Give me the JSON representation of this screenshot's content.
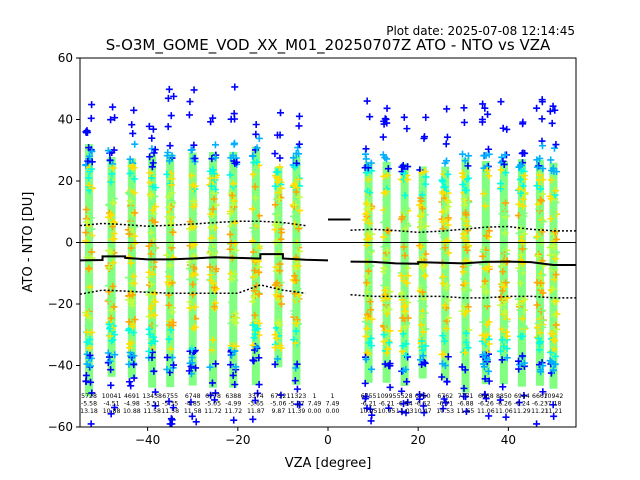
{
  "chart_data": {
    "type": "scatter",
    "title": "S-O3M_GOME_VOD_XX_M01_20250707Z ATO - NTO vs VZA",
    "plot_date": "Plot date: 2025-07-08 12:14:45",
    "xlabel": "VZA [degree]",
    "ylabel": "ATO - NTO [DU]",
    "xlim": [
      -55,
      55
    ],
    "ylim": [
      -60,
      60
    ],
    "xticks": [
      -40,
      -20,
      0,
      20,
      40
    ],
    "yticks": [
      -60,
      -40,
      -20,
      0,
      20,
      40,
      60
    ],
    "grid": false,
    "marker": "+",
    "point_colors": [
      "#0000ff",
      "#00b0ff",
      "#00ffe0",
      "#80ff80",
      "#c0ff40",
      "#ffe000",
      "#ffa500"
    ],
    "bins": [
      {
        "x": -53,
        "count": 5728,
        "mean": -5.58,
        "std": 13.18
      },
      {
        "x": -48,
        "count": 10041,
        "mean": -4.51,
        "std": 10.88
      },
      {
        "x": -43.5,
        "count": 4691,
        "mean": -4.98,
        "std": 10.88
      },
      {
        "x": -39,
        "count": 13438,
        "mean": -5.51,
        "std": 11.58
      },
      {
        "x": -35,
        "count": 6755,
        "mean": -5.35,
        "std": 11.58
      },
      {
        "x": -30,
        "count": 6748,
        "mean": -4.85,
        "std": 11.58
      },
      {
        "x": -25.5,
        "count": 6778,
        "mean": -5.05,
        "std": 11.72
      },
      {
        "x": -21,
        "count": 6388,
        "mean": -4.99,
        "std": 11.72
      },
      {
        "x": -16,
        "count": 3374,
        "mean": -3.65,
        "std": 11.87
      },
      {
        "x": -11,
        "count": 6752,
        "mean": -5.06,
        "std": 9.87
      },
      {
        "x": -7,
        "count": 11323,
        "mean": -5.27,
        "std": 11.39
      },
      {
        "x": -3,
        "count": 1,
        "mean": 7.49,
        "std": 0.0
      },
      {
        "x": 1,
        "count": 1,
        "mean": 7.49,
        "std": 0.0
      },
      {
        "x": 9,
        "count": 6755,
        "mean": -6.21,
        "std": 10.95
      },
      {
        "x": 13,
        "count": 10995,
        "mean": -6.21,
        "std": 10.95
      },
      {
        "x": 17,
        "count": 5528,
        "mean": -6.94,
        "std": 11.03
      },
      {
        "x": 21,
        "count": 6760,
        "mean": -6.52,
        "std": 10.47
      },
      {
        "x": 26,
        "count": 6762,
        "mean": -6.71,
        "std": 10.53
      },
      {
        "x": 30.5,
        "count": 7771,
        "mean": -6.88,
        "std": 11.65
      },
      {
        "x": 35,
        "count": 6668,
        "mean": -6.26,
        "std": 11.06
      },
      {
        "x": 39,
        "count": 8850,
        "mean": -6.26,
        "std": 11.06
      },
      {
        "x": 43,
        "count": 6944,
        "mean": -6.24,
        "std": 11.29
      },
      {
        "x": 47,
        "count": 6667,
        "mean": -6.23,
        "std": 11.21
      },
      {
        "x": 50,
        "count": 10942,
        "mean": -7.18,
        "std": 11.21
      }
    ],
    "dotted_upper": [
      [
        -55,
        5.5
      ],
      [
        -50,
        6.2
      ],
      [
        -45,
        5.8
      ],
      [
        -40,
        5.3
      ],
      [
        -35,
        5.6
      ],
      [
        -30,
        6.0
      ],
      [
        -25,
        6.5
      ],
      [
        -20,
        6.9
      ],
      [
        -15,
        6.9
      ],
      [
        -10,
        6.5
      ],
      [
        -5,
        5.5
      ],
      [
        5,
        4.0
      ],
      [
        10,
        4.3
      ],
      [
        15,
        3.9
      ],
      [
        20,
        3.3
      ],
      [
        25,
        3.7
      ],
      [
        30,
        4.3
      ],
      [
        35,
        5.0
      ],
      [
        40,
        5.2
      ],
      [
        45,
        4.3
      ],
      [
        50,
        3.8
      ],
      [
        55,
        3.8
      ]
    ],
    "dotted_lower": [
      [
        -55,
        -16.8
      ],
      [
        -50,
        -15.5
      ],
      [
        -45,
        -15.8
      ],
      [
        -40,
        -16.2
      ],
      [
        -35,
        -16.5
      ],
      [
        -30,
        -16.5
      ],
      [
        -25,
        -16.5
      ],
      [
        -20,
        -16.5
      ],
      [
        -15,
        -13.8
      ],
      [
        -10,
        -15.5
      ],
      [
        -5,
        -16.5
      ],
      [
        5,
        -17.0
      ],
      [
        10,
        -17.5
      ],
      [
        15,
        -17.5
      ],
      [
        20,
        -17.5
      ],
      [
        25,
        -17.5
      ],
      [
        30,
        -18.0
      ],
      [
        35,
        -18.0
      ],
      [
        40,
        -17.5
      ],
      [
        45,
        -17.5
      ],
      [
        50,
        -18.0
      ],
      [
        55,
        -18.0
      ]
    ],
    "mean_segments": [
      [
        -55,
        -5.8
      ],
      [
        -50,
        -5.7
      ],
      [
        -50,
        -4.5
      ],
      [
        -45,
        -4.5
      ],
      [
        -45,
        -5.0
      ],
      [
        -40,
        -5.5
      ],
      [
        -35,
        -5.5
      ],
      [
        -30,
        -5.2
      ],
      [
        -25,
        -4.8
      ],
      [
        -20,
        -5.0
      ],
      [
        -15,
        -5.2
      ],
      [
        -15,
        -3.8
      ],
      [
        -10,
        -3.8
      ],
      [
        -10,
        -5.2
      ],
      [
        -5,
        -5.6
      ],
      [
        0,
        -5.8
      ]
    ],
    "mean_segments_right": [
      [
        5,
        -6.2
      ],
      [
        10,
        -6.3
      ],
      [
        15,
        -6.8
      ],
      [
        20,
        -6.9
      ],
      [
        20,
        -6.4
      ],
      [
        25,
        -6.6
      ],
      [
        30,
        -6.8
      ],
      [
        35,
        -6.3
      ],
      [
        40,
        -6.2
      ],
      [
        45,
        -6.4
      ],
      [
        50,
        -7.3
      ],
      [
        55,
        -7.3
      ]
    ],
    "mean_center": [
      [
        0,
        7.5
      ],
      [
        5,
        7.5
      ]
    ]
  }
}
